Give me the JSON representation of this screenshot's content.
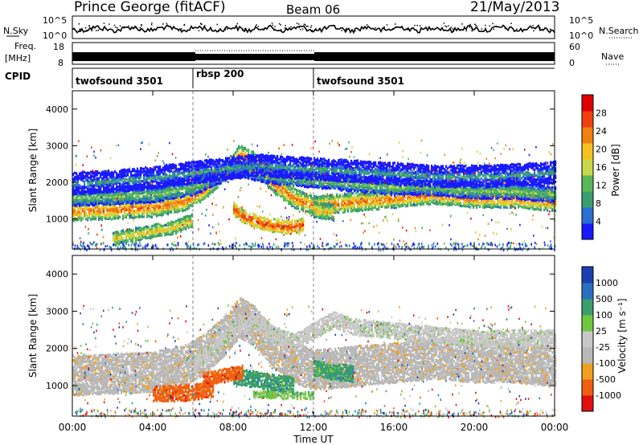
{
  "header": {
    "station": "Prince George (fitACF)",
    "beam": "Beam 06",
    "date": "21/May/2013"
  },
  "noise_panel": {
    "left_label": "N.Sky",
    "right_label": "N.Search",
    "tick_top": "10^5",
    "tick_bottom": "10^0",
    "right_tick_top": "10^5",
    "right_tick_bottom": "10^0"
  },
  "freq_panel": {
    "left_label_1": "Freq.",
    "left_label_2": "[MHz]",
    "tick_top": "18",
    "tick_bottom": "8",
    "right_label": "Nave",
    "right_tick_top": "60",
    "right_tick_bottom": "0"
  },
  "cpid_panel": {
    "label": "CPID",
    "segments": [
      {
        "name": "twofsound 3501",
        "start": 0,
        "end": 6
      },
      {
        "name": "rbsp 200",
        "start": 6,
        "end": 12
      },
      {
        "name": "twofsound 3501",
        "start": 12,
        "end": 24
      }
    ]
  },
  "colors": {
    "power": [
      "#1a1aff",
      "#2a6fd0",
      "#3a9e6e",
      "#5ab85a",
      "#c8d84a",
      "#f5c020",
      "#f08010",
      "#f04010",
      "#e00000"
    ],
    "velocity": [
      "#e01010",
      "#f06010",
      "#f0a020",
      "#b8b8b8",
      "#c8c8c8",
      "#70c840",
      "#3a9e6e",
      "#2a70c0",
      "#1a40b0"
    ]
  },
  "chart_data": [
    {
      "type": "heatmap",
      "panel": "power",
      "ylabel": "Slant Range [km]",
      "yticks": [
        "1000",
        "2000",
        "3000",
        "4000"
      ],
      "ylim": [
        180,
        4500
      ],
      "xlim": [
        0,
        24
      ],
      "colorbar_label": "Power [dB]",
      "colorbar_ticks": [
        "4",
        "8",
        "12",
        "16",
        "20",
        "24",
        "28"
      ],
      "bands": [
        {
          "t": [
            0,
            2,
            4,
            5.5,
            6.5,
            7.5,
            8.3,
            9,
            10,
            11,
            12,
            14,
            16,
            18,
            20,
            22,
            24
          ],
          "r": [
            1250,
            1280,
            1350,
            1500,
            1800,
            2300,
            2800,
            2600,
            2000,
            1600,
            1400,
            1500,
            1600,
            1700,
            1600,
            1600,
            1500
          ],
          "w": 220,
          "p": 26
        },
        {
          "t": [
            0,
            2,
            4,
            6,
            8,
            10,
            12,
            14,
            16,
            18,
            20,
            22,
            24
          ],
          "r": [
            1600,
            1650,
            1700,
            1900,
            2400,
            2200,
            2100,
            2000,
            1900,
            1900,
            1800,
            1800,
            1700
          ],
          "w": 180,
          "p": 14
        },
        {
          "t": [
            0,
            3,
            6,
            9,
            12,
            15,
            18,
            21,
            24
          ],
          "r": [
            2000,
            2100,
            2300,
            2500,
            2400,
            2300,
            2200,
            2200,
            2300
          ],
          "w": 260,
          "p": 9
        },
        {
          "t": [
            8,
            8.5,
            9,
            9.5,
            10,
            11,
            11.5
          ],
          "r": [
            1300,
            1100,
            1000,
            900,
            850,
            800,
            900
          ],
          "w": 150,
          "p": 28
        },
        {
          "t": [
            2,
            3,
            4,
            5,
            6
          ],
          "r": [
            500,
            600,
            700,
            800,
            1000
          ],
          "w": 140,
          "p": 20
        },
        {
          "t": [
            12,
            12.5,
            13
          ],
          "r": [
            1300,
            1250,
            1200
          ],
          "w": 180,
          "p": 22
        }
      ]
    },
    {
      "type": "heatmap",
      "panel": "velocity",
      "ylabel": "Slant Range [km]",
      "yticks": [
        "1000",
        "2000",
        "3000",
        "4000"
      ],
      "ylim": [
        180,
        4500
      ],
      "xlim": [
        0,
        24
      ],
      "xticks": [
        "00:00",
        "04:00",
        "08:00",
        "12:00",
        "16:00",
        "20:00",
        "00:00"
      ],
      "xlabel": "Time UT",
      "colorbar_label": "Velocity [m s⁻¹]",
      "colorbar_ticks": [
        "-1000",
        "-500",
        "-100",
        "-25",
        "25",
        "100",
        "500",
        "1000"
      ],
      "bands": [
        {
          "t": [
            0,
            2,
            4,
            5.5,
            6.5,
            7.5,
            8.3,
            9,
            10,
            11,
            12,
            14,
            16,
            18,
            20,
            22,
            24
          ],
          "r": [
            1300,
            1350,
            1400,
            1550,
            1850,
            2350,
            2850,
            2650,
            2050,
            1650,
            1450,
            1550,
            1650,
            1750,
            1650,
            1650,
            1550
          ],
          "w": 500,
          "v": 3
        },
        {
          "t": [
            6,
            7,
            8,
            9,
            10,
            11,
            12,
            13,
            14,
            16,
            18,
            20,
            22,
            24
          ],
          "r": [
            1600,
            2000,
            2600,
            2800,
            2400,
            2200,
            2500,
            2800,
            2600,
            2500,
            2400,
            2300,
            2300,
            2300
          ],
          "w": 200,
          "v": 4
        },
        {
          "t": [
            4,
            5,
            6,
            7
          ],
          "r": [
            800,
            820,
            850,
            950
          ],
          "w": 200,
          "v": 1
        },
        {
          "t": [
            8,
            9,
            10,
            11
          ],
          "r": [
            1300,
            1200,
            1100,
            1050
          ],
          "w": 200,
          "v": 6
        },
        {
          "t": [
            12,
            13,
            14
          ],
          "r": [
            1500,
            1400,
            1350
          ],
          "w": 180,
          "v": 6
        },
        {
          "t": [
            9,
            10,
            11,
            12
          ],
          "r": [
            800,
            780,
            760,
            760
          ],
          "w": 80,
          "v": 5
        },
        {
          "t": [
            6.5,
            7.5,
            8.5
          ],
          "r": [
            1200,
            1300,
            1400
          ],
          "w": 150,
          "v": 1
        }
      ]
    }
  ],
  "axes": {
    "xticks": [
      "00:00",
      "04:00",
      "08:00",
      "12:00",
      "16:00",
      "20:00",
      "00:00"
    ],
    "xlabel": "Time UT"
  }
}
